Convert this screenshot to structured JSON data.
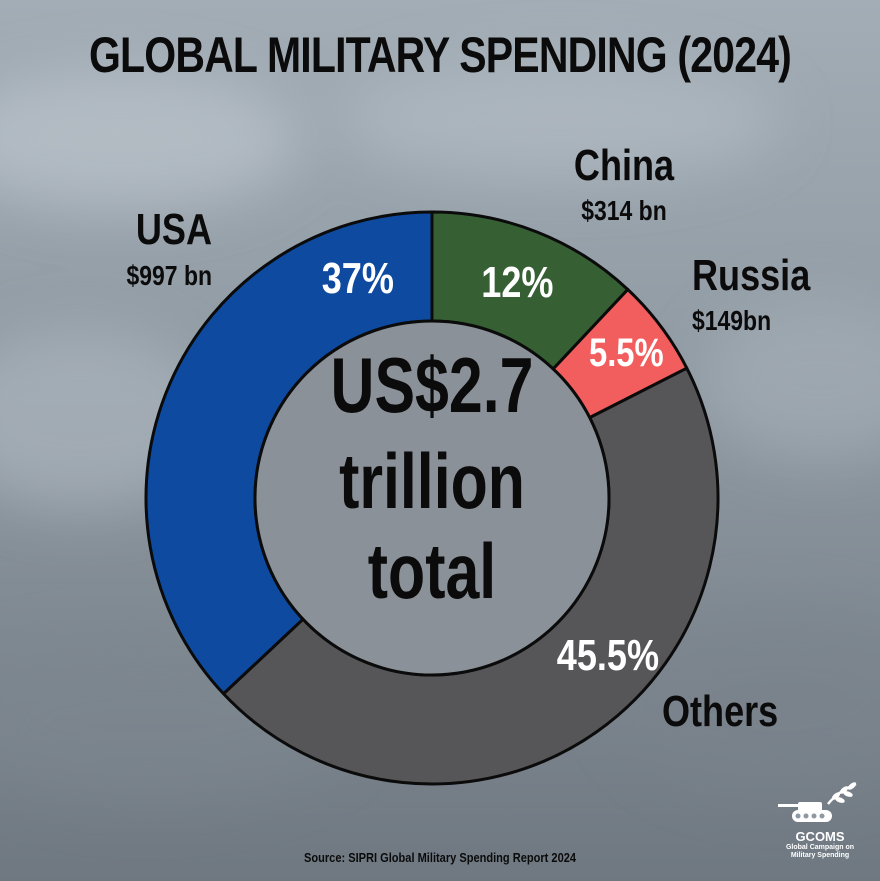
{
  "title": "GLOBAL MILITARY SPENDING (2024)",
  "center_label": [
    "US$2.7",
    "trillion",
    "total"
  ],
  "source": "Source: SIPRI Global Military Spending Report 2024",
  "logo": {
    "name": "GCOMS",
    "subtitle_line1": "Global Campaign on",
    "subtitle_line2": "Military Spending"
  },
  "colors": {
    "background": "#8e98a1",
    "usa": "#0d4aa0",
    "china": "#366034",
    "russia": "#f25d5d",
    "others": "#565658",
    "center": "#8a9198"
  },
  "chart_data": {
    "type": "pie",
    "donut": true,
    "title": "GLOBAL MILITARY SPENDING (2024)",
    "total_label": "US$2.7 trillion total",
    "slices": [
      {
        "name": "China",
        "value": 12,
        "label": "12%",
        "amount": "$314 bn",
        "color": "#366034"
      },
      {
        "name": "Russia",
        "value": 5.5,
        "label": "5.5%",
        "amount": "$149bn",
        "color": "#f25d5d"
      },
      {
        "name": "Others",
        "value": 45.5,
        "label": "45.5%",
        "amount": "",
        "color": "#565658"
      },
      {
        "name": "USA",
        "value": 37,
        "label": "37%",
        "amount": "$997 bn",
        "color": "#0d4aa0"
      }
    ],
    "start": "12 o'clock",
    "direction": "clockwise"
  }
}
